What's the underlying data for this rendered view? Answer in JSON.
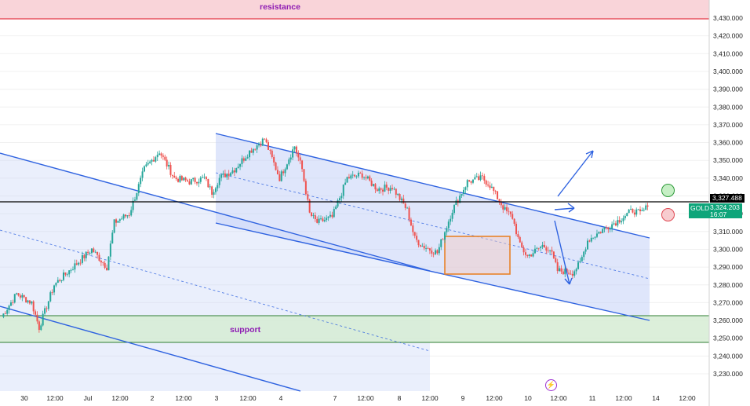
{
  "instrument": {
    "symbol": "GOLD",
    "current_price": "3,324.203",
    "countdown": "16:07",
    "reference_price": "3,327.488"
  },
  "zones": {
    "resistance_label": "resistance",
    "support_label": "support"
  },
  "colors": {
    "up": "#26a69a",
    "down": "#ef5350",
    "channel": "#2e62e0",
    "zone_resistance": "#f8cdd2",
    "zone_support": "#d6ecd3"
  },
  "icons": [
    "bolt-icon",
    "target-circle-green",
    "target-circle-red"
  ],
  "chart_data": {
    "type": "candlestick",
    "ylim": [
      3224,
      3437
    ],
    "y_ticks": [
      "3,230.000",
      "3,240.000",
      "3,250.000",
      "3,260.000",
      "3,270.000",
      "3,280.000",
      "3,290.000",
      "3,300.000",
      "3,310.000",
      "3,320.000",
      "3,330.000",
      "3,340.000",
      "3,350.000",
      "3,360.000",
      "3,370.000",
      "3,380.000",
      "3,390.000",
      "3,400.000",
      "3,410.000",
      "3,420.000",
      "3,430.000"
    ],
    "x_ticks": [
      "30",
      "12:00",
      "Jul",
      "12:00",
      "2",
      "12:00",
      "3",
      "12:00",
      "4",
      "7",
      "12:00",
      "8",
      "12:00",
      "9",
      "12:00",
      "10",
      "12:00",
      "11",
      "12:00",
      "14",
      "12:00"
    ],
    "resistance_zone": [
      3430,
      3437
    ],
    "support_zone": [
      3248,
      3263
    ],
    "reference_line": 3327.5,
    "price_path": [
      [
        0,
        3262
      ],
      [
        2,
        3275
      ],
      [
        4,
        3270
      ],
      [
        5,
        3256
      ],
      [
        7,
        3280
      ],
      [
        10,
        3292
      ],
      [
        12,
        3300
      ],
      [
        14,
        3290
      ],
      [
        15,
        3315
      ],
      [
        17,
        3320
      ],
      [
        19,
        3345
      ],
      [
        21,
        3355
      ],
      [
        23,
        3340
      ],
      [
        25,
        3338
      ],
      [
        27,
        3340
      ],
      [
        28,
        3332
      ],
      [
        29,
        3340
      ],
      [
        31,
        3345
      ],
      [
        33,
        3355
      ],
      [
        35,
        3362
      ],
      [
        37,
        3340
      ],
      [
        39,
        3358
      ],
      [
        40,
        3345
      ],
      [
        41,
        3320
      ],
      [
        42,
        3315
      ],
      [
        44,
        3318
      ],
      [
        46,
        3340
      ],
      [
        48,
        3342
      ],
      [
        50,
        3334
      ],
      [
        52,
        3335
      ],
      [
        54,
        3322
      ],
      [
        55,
        3306
      ],
      [
        56,
        3302
      ],
      [
        58,
        3298
      ],
      [
        60,
        3322
      ],
      [
        62,
        3338
      ],
      [
        64,
        3340
      ],
      [
        65,
        3336
      ],
      [
        67,
        3322
      ],
      [
        68,
        3318
      ],
      [
        69,
        3302
      ],
      [
        70,
        3296
      ],
      [
        72,
        3302
      ],
      [
        73,
        3300
      ],
      [
        74,
        3288
      ],
      [
        76,
        3287
      ],
      [
        77,
        3292
      ],
      [
        78,
        3305
      ],
      [
        80,
        3311
      ],
      [
        82,
        3316
      ],
      [
        84,
        3322
      ],
      [
        85,
        3320
      ],
      [
        86,
        3324
      ]
    ],
    "channel": {
      "upper_line": [
        [
          0,
          3353
        ],
        [
          126,
          3305
        ]
      ],
      "lower_line": [
        [
          0,
          3315
        ],
        [
          126,
          3262
        ]
      ],
      "mid_line": [
        [
          0,
          3334
        ],
        [
          126,
          3283
        ]
      ]
    },
    "consolidation_box": {
      "y_range": [
        3286,
        3307
      ]
    },
    "scenario_arrows": [
      "breakout-up",
      "retest",
      "breakdown-down"
    ]
  }
}
